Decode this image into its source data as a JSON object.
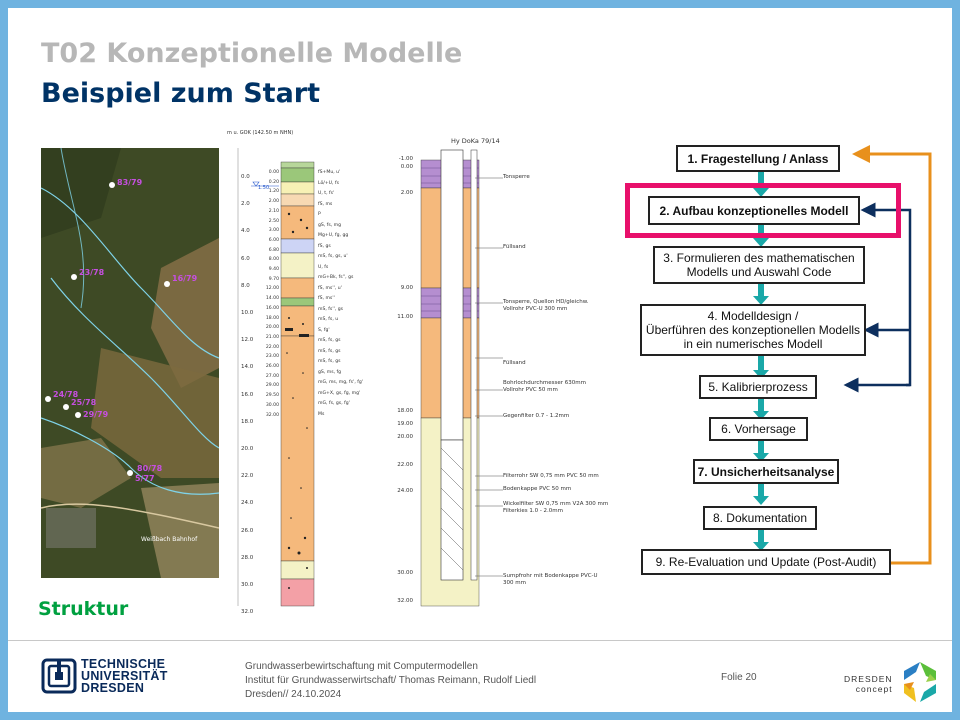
{
  "slide": {
    "title_line1": "T02 Konzeptionelle Modelle",
    "title_line2": "Beispiel zum Start",
    "struktur_label": "Struktur"
  },
  "map": {
    "wells": [
      "83/79",
      "23/78",
      "16/79",
      "24/78",
      "25/78",
      "29/79",
      "80/78",
      "5/77"
    ],
    "place_label": "Weißbach Bahnhof"
  },
  "log1": {
    "header": "m u. GOK (142.50 m NHN)",
    "water_level": "1.50",
    "depth_ticks": [
      "0.0",
      "2.0",
      "4.0",
      "6.0",
      "8.0",
      "10.0",
      "12.0",
      "14.0",
      "16.0",
      "18.0",
      "20.0",
      "22.0",
      "24.0",
      "26.0",
      "28.0",
      "30.0",
      "32.0"
    ],
    "layer_depths": [
      "0.00",
      "0.20",
      "1.20",
      "2.00",
      "2.10",
      "2.50",
      "3.00",
      "6.00",
      "6.80",
      "8.00",
      "9.40",
      "9.70",
      "12.00",
      "14.00",
      "16.00",
      "18.00",
      "20.00",
      "21.00",
      "22.00",
      "23.00",
      "26.00",
      "27.00",
      "29.00",
      "29.50",
      "30.00",
      "32.00"
    ],
    "descriptions": [
      "fS+Mu, u'",
      "Lö/+U, fs",
      "U, t, fs'",
      "fS, ms",
      "P",
      "gS, fs, mg",
      "Mg+U, fg, gg",
      "fS, gs",
      "mS, fs, gs, u'",
      "U, fs",
      "mG+Bk, fs'', gs",
      "fS, ms'', u'",
      "fS, ms''",
      "mS, fs'', gs",
      "mS, fs, u",
      "S, fg'",
      "mS, fs, gs",
      "mS, fs, gs",
      "mS, fs, gs",
      "gS, ms, fg",
      "mG, ms, mg, fs', fg'",
      "mG+X, gs, fg, mg'",
      "mG, fs, gs, fg'",
      "Ms"
    ]
  },
  "log2": {
    "header": "Hy DoKa 79/14",
    "depths": [
      "-1.00",
      "0.00",
      "2.00",
      "9.00",
      "11.00",
      "18.00",
      "19.00",
      "20.00",
      "22.00",
      "24.00",
      "30.00",
      "32.00"
    ],
    "labels": [
      "Tonsperre",
      "Füllsand",
      "Tonsperre, Quellon HD/gleichw.",
      "Vollrohr PVC-U 300 mm",
      "Füllsand",
      "Bohrlochdurchmesser 630mm",
      "Vollrohr PVC 50 mm",
      "Gegenfilter 0.7 - 1.2mm",
      "Filterrohr  SW 0,75 mm PVC 50 mm",
      "Bodenkappe PVC 50 mm",
      "Wickelfilter SW 0,75 mm V2A 300 mm",
      "Filterkies 1.0 - 2.0mm",
      "Sumpfrohr mit Bodenkappe PVC-U",
      "300 mm"
    ]
  },
  "flow": {
    "steps": [
      {
        "line1": "1. Fragestellung / Anlass",
        "line2": "",
        "line3": ""
      },
      {
        "line1": "2. Aufbau konzeptionelles Modell",
        "line2": "",
        "line3": ""
      },
      {
        "line1": "3. Formulieren des mathematischen",
        "line2": "Modells und Auswahl Code",
        "line3": ""
      },
      {
        "line1": "4. Modelldesign /",
        "line2": "Überführen des konzeptionellen Modells",
        "line3": "in ein numerisches Modell"
      },
      {
        "line1": "5. Kalibrierprozess",
        "line2": "",
        "line3": ""
      },
      {
        "line1": "6. Vorhersage",
        "line2": "",
        "line3": ""
      },
      {
        "line1": "7. Unsicherheitsanalyse",
        "line2": "",
        "line3": ""
      },
      {
        "line1": "8. Dokumentation",
        "line2": "",
        "line3": ""
      },
      {
        "line1": "9. Re-Evaluation und Update (Post-Audit)",
        "line2": "",
        "line3": ""
      }
    ],
    "colors": {
      "teal": "#1aa8a8",
      "orange": "#e8901c",
      "navy": "#0d2f5e",
      "highlight": "#e8106b"
    }
  },
  "footer": {
    "tud_line1": "TECHNISCHE",
    "tud_line2": "UNIVERSITÄT",
    "tud_line3": "DRESDEN",
    "info_line1": "Grundwasserbewirtschaftung mit Computermodellen",
    "info_line2": "Institut für Grundwasserwirtschaft/ Thomas Reimann, Rudolf Liedl",
    "info_line3": "Dresden// 24.10.2024",
    "folie": "Folie 20",
    "dresden_line1": "DRESDEN",
    "dresden_line2": "concept"
  }
}
